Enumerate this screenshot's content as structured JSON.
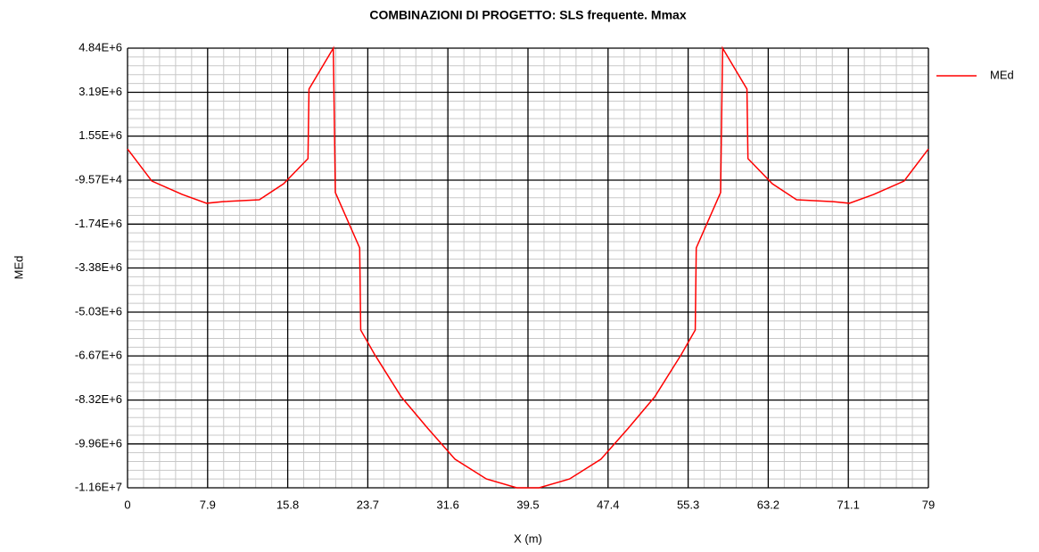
{
  "chart_data": {
    "type": "line",
    "title": "COMBINAZIONI DI PROGETTO:  SLS frequente. Mmax",
    "x_label": "X (m)",
    "y_label": "MEd",
    "x": [
      0,
      2.4,
      5.4,
      7.8,
      9.4,
      13,
      15.4,
      17.8,
      17.9,
      20.3,
      20.5,
      22.9,
      23.0,
      24.4,
      27.0,
      29.6,
      32.3,
      35.4,
      38.4,
      39.5,
      40.6,
      43.6,
      46.7,
      49.4,
      52,
      54.6,
      56,
      56.1,
      58.5,
      58.7,
      61.1,
      61.2,
      63.6,
      66,
      69.6,
      71.2,
      73.6,
      76.6,
      79
    ],
    "series": [
      {
        "name": "MEd",
        "color": "#ff0000",
        "values": [
          1070000,
          -130000,
          -630000,
          -960000,
          -900000,
          -830000,
          -230000,
          710000,
          3310000,
          4840000,
          -560000,
          -2630000,
          -5700000,
          -6630000,
          -8200000,
          -9370000,
          -10530000,
          -11270000,
          -11600000,
          -11600000,
          -11600000,
          -11270000,
          -10530000,
          -9370000,
          -8200000,
          -6630000,
          -5700000,
          -2630000,
          -560000,
          4840000,
          3310000,
          710000,
          -230000,
          -830000,
          -900000,
          -960000,
          -630000,
          -130000,
          1070000
        ]
      }
    ],
    "xlim": [
      0,
      79
    ],
    "xticks": [
      0,
      7.9,
      15.8,
      23.7,
      31.6,
      39.5,
      47.4,
      55.3,
      63.2,
      71.1,
      79
    ],
    "ylim": [
      -11600000,
      4840000
    ],
    "yticks": [
      {
        "value": -11600000,
        "label": "-1.16E+7"
      },
      {
        "value": -9960000,
        "label": "-9.96E+6"
      },
      {
        "value": -8320000,
        "label": "-8.32E+6"
      },
      {
        "value": -6670000,
        "label": "-6.67E+6"
      },
      {
        "value": -5030000,
        "label": "-5.03E+6"
      },
      {
        "value": -3380000,
        "label": "-3.38E+6"
      },
      {
        "value": -1740000,
        "label": "-1.74E+6"
      },
      {
        "value": -95700,
        "label": "-9.57E+4"
      },
      {
        "value": 1550000,
        "label": "1.55E+6"
      },
      {
        "value": 3190000,
        "label": "3.19E+6"
      },
      {
        "value": 4840000,
        "label": "4.84E+6"
      }
    ],
    "grid": true,
    "minor_grid": 5,
    "legend": "right"
  }
}
